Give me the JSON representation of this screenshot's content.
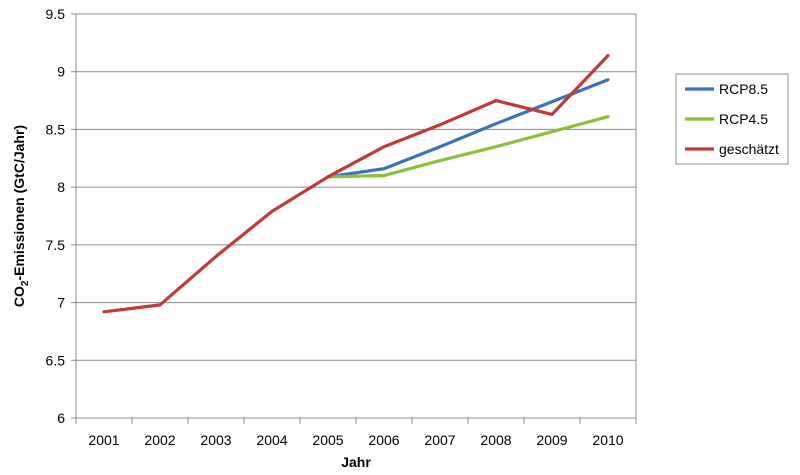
{
  "chart_data": {
    "type": "line",
    "xlabel": "Jahr",
    "ylabel": {
      "part1": "CO",
      "subscript": "2",
      "part2": "-Emissionen (GtC/Jahr)"
    },
    "ylim": [
      6,
      9.5
    ],
    "yticks": [
      "6",
      "6.5",
      "7",
      "7.5",
      "8",
      "8.5",
      "9",
      "9.5"
    ],
    "x": [
      "2001",
      "2002",
      "2003",
      "2004",
      "2005",
      "2006",
      "2007",
      "2008",
      "2009",
      "2010"
    ],
    "grid": "horizontal",
    "legend_position": "right",
    "series": [
      {
        "name": "RCP8.5",
        "color": "#3e72b8",
        "x": [
          "2005",
          "2006",
          "2007",
          "2008",
          "2009",
          "2010"
        ],
        "values": [
          8.09,
          8.16,
          8.35,
          8.55,
          8.74,
          8.93
        ]
      },
      {
        "name": "RCP4.5",
        "color": "#8dbe3e",
        "x": [
          "2005",
          "2006",
          "2007",
          "2008",
          "2009",
          "2010"
        ],
        "values": [
          8.09,
          8.1,
          8.23,
          8.35,
          8.48,
          8.61
        ]
      },
      {
        "name": "geschätzt",
        "color": "#c0393b",
        "x": [
          "2001",
          "2002",
          "2003",
          "2004",
          "2005",
          "2006",
          "2007",
          "2008",
          "2009",
          "2010"
        ],
        "values": [
          6.92,
          6.98,
          7.4,
          7.79,
          8.09,
          8.35,
          8.54,
          8.75,
          8.63,
          9.14
        ]
      }
    ]
  }
}
